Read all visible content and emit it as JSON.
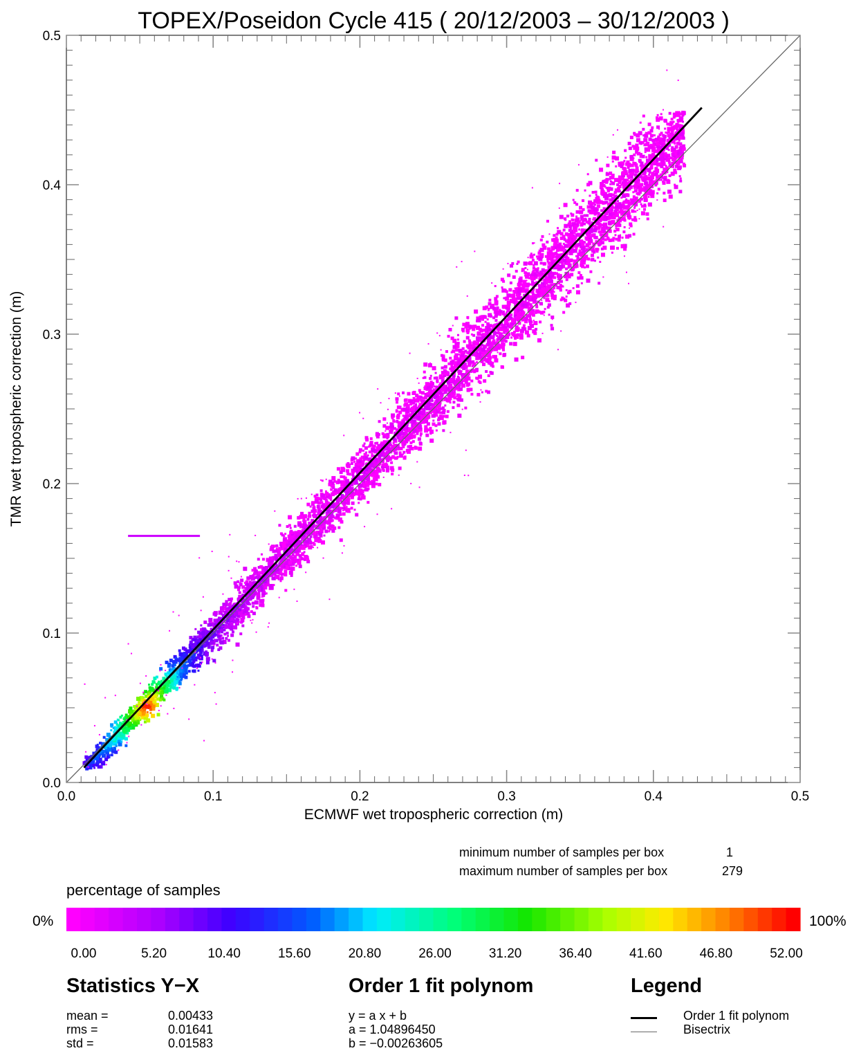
{
  "chart_data": {
    "type": "heatmap",
    "title": "TOPEX/Poseidon Cycle 415 ( 20/12/2003 – 30/12/2003 )",
    "xlabel": "ECMWF wet tropospheric correction (m)",
    "ylabel": "TMR wet tropospheric correction (m)",
    "xlim": [
      0.0,
      0.5
    ],
    "ylim": [
      0.0,
      0.5
    ],
    "x_ticks": [
      "0.0",
      "0.1",
      "0.2",
      "0.3",
      "0.4",
      "0.5"
    ],
    "y_ticks": [
      "0.0",
      "0.1",
      "0.2",
      "0.3",
      "0.4",
      "0.5"
    ],
    "grid": false,
    "fit_line": {
      "a": 1.0489645,
      "b": -0.00263605,
      "x_range": [
        0.012,
        0.433
      ]
    },
    "bisectrix": {
      "x_range": [
        0.0,
        0.5
      ]
    },
    "density_cloud": {
      "peak_region": {
        "x": 0.055,
        "y": 0.05
      },
      "extent": {
        "x": [
          0.01,
          0.42
        ],
        "y": [
          0.01,
          0.45
        ]
      },
      "spread_y": 0.016
    },
    "horizontal_artifact": {
      "y": 0.165,
      "x": [
        0.042,
        0.091
      ]
    }
  },
  "samples": {
    "min_label": "minimum number of samples per box",
    "min_value": "1",
    "max_label": "maximum number of samples per box",
    "max_value": "279"
  },
  "colorbar": {
    "title": "percentage of samples",
    "left_label": "0%",
    "right_label": "100%",
    "ticks": [
      "0.00",
      "5.20",
      "10.40",
      "15.60",
      "20.80",
      "26.00",
      "31.20",
      "36.40",
      "41.60",
      "46.80",
      "52.00"
    ]
  },
  "statistics": {
    "title": "Statistics Y−X",
    "rows": [
      {
        "label": "mean =",
        "value": "0.00433"
      },
      {
        "label": "rms =",
        "value": "0.01641"
      },
      {
        "label": "std =",
        "value": "0.01583"
      }
    ]
  },
  "fit": {
    "title": "Order 1 fit polynom",
    "equation": "y = a x + b",
    "a_line": "a =  1.04896450",
    "b_line": "b = −0.00263605"
  },
  "legend": {
    "title": "Legend",
    "items": [
      {
        "label": "Order 1 fit polynom"
      },
      {
        "label": "Bisectrix"
      }
    ]
  }
}
